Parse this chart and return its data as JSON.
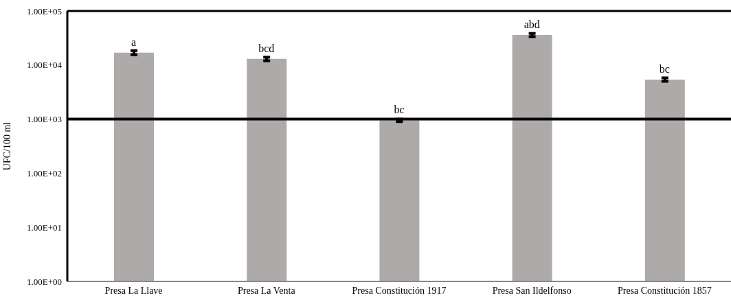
{
  "chart_data": {
    "type": "bar",
    "ylabel": "UFC/100 ml",
    "categories": [
      "Presa La Llave",
      "Presa La Venta",
      "Presa Constitución 1917",
      "Presa San Ildelfonso",
      "Presa Constitución 1857"
    ],
    "values": [
      17000,
      13000,
      950,
      36000,
      5400
    ],
    "errors": [
      1500,
      1000,
      50,
      2500,
      400
    ],
    "color": "#aeaaaa",
    "log": true,
    "ylim": [
      1,
      100000
    ],
    "yticks": [
      {
        "value": 1,
        "label": "1.00E+00"
      },
      {
        "value": 10,
        "label": "1.00E+01"
      },
      {
        "value": 100,
        "label": "1.00E+02"
      },
      {
        "value": 1000,
        "label": "1.00E+03"
      },
      {
        "value": 10000,
        "label": "1.00E+04"
      },
      {
        "value": 100000,
        "label": "1.00E+05"
      }
    ],
    "ref_lines": [
      {
        "axis": "y",
        "value": 1000,
        "color": "#000000"
      }
    ],
    "annotations": [
      {
        "text": "a",
        "x": "Presa La Llave",
        "y": 17000
      },
      {
        "text": "bcd",
        "x": "Presa La Venta",
        "y": 13000
      },
      {
        "text": "bc",
        "x": "Presa Constitución 1917",
        "y": 950
      },
      {
        "text": "abd",
        "x": "Presa San Ildelfonso",
        "y": 36000
      },
      {
        "text": "bc",
        "x": "Presa Constitución 1857",
        "y": 5400
      }
    ]
  }
}
